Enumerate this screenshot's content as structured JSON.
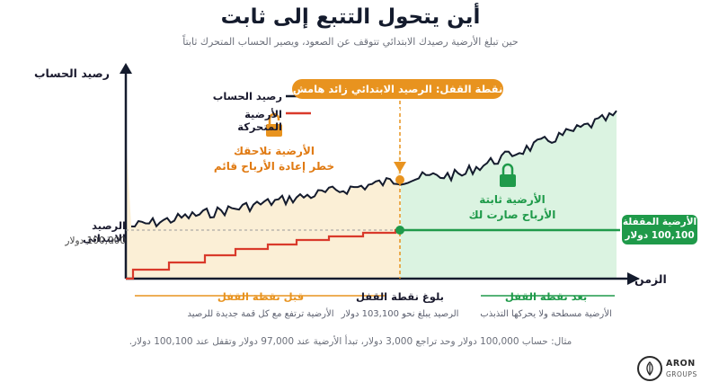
{
  "header": {
    "title": "أين يتحول التتبع إلى ثابت",
    "subtitle": "حين تبلغ الأرضية رصيدك الابتدائي تتوقف عن الصعود، ويصير الحساب المتحرك ثابتاً"
  },
  "axes": {
    "y_label": "رصيد الحساب",
    "x_label": "الزمن"
  },
  "initial_balance": {
    "label": "الرصيد الابتدائي",
    "value": "100,000 دولار"
  },
  "legend": {
    "balance": "رصيد الحساب",
    "floor": "الأرضية المتحركة"
  },
  "notes": {
    "trailing_line1": "الأرضية تلاحقك",
    "trailing_line2": "خطر إعادة الأرباح قائم",
    "fixed_line1": "الأرضية ثابتة",
    "fixed_line2": "الأرباح صارت لك"
  },
  "lock_callout": "نقطة القفل: الرصيد الابتدائي زائد هامش صغير",
  "locked_floor": {
    "label": "الأرضية المقفلة",
    "value": "100,100 دولار"
  },
  "phases": [
    {
      "title": "قبل نقطة القفل",
      "desc": "الأرضية ترتفع مع كل قمة جديدة للرصيد",
      "color": "#e8931f"
    },
    {
      "title": "بلوغ نقطة القفل",
      "desc": "الرصيد يبلغ نحو 103,100 دولار",
      "color": "#1a1a2e"
    },
    {
      "title": "بعد نقطة القفل",
      "desc": "الأرضية مسطحة ولا يحركها التذبذب",
      "color": "#1f9a4a"
    }
  ],
  "example": "مثال: حساب 100,000 دولار وحد تراجع 3,000 دولار، تبدأ الأرضية عند 97,000 دولار وتقفل عند 100,100 دولار.",
  "brand": {
    "name": "ARON",
    "sub": "GROUPS"
  },
  "colors": {
    "orange": "#e8931f",
    "green": "#1f9a4a",
    "red": "#d93a2b",
    "navy": "#141b2d",
    "pre_fill": "#fbefd6",
    "post_fill": "#dbf3e1"
  }
}
